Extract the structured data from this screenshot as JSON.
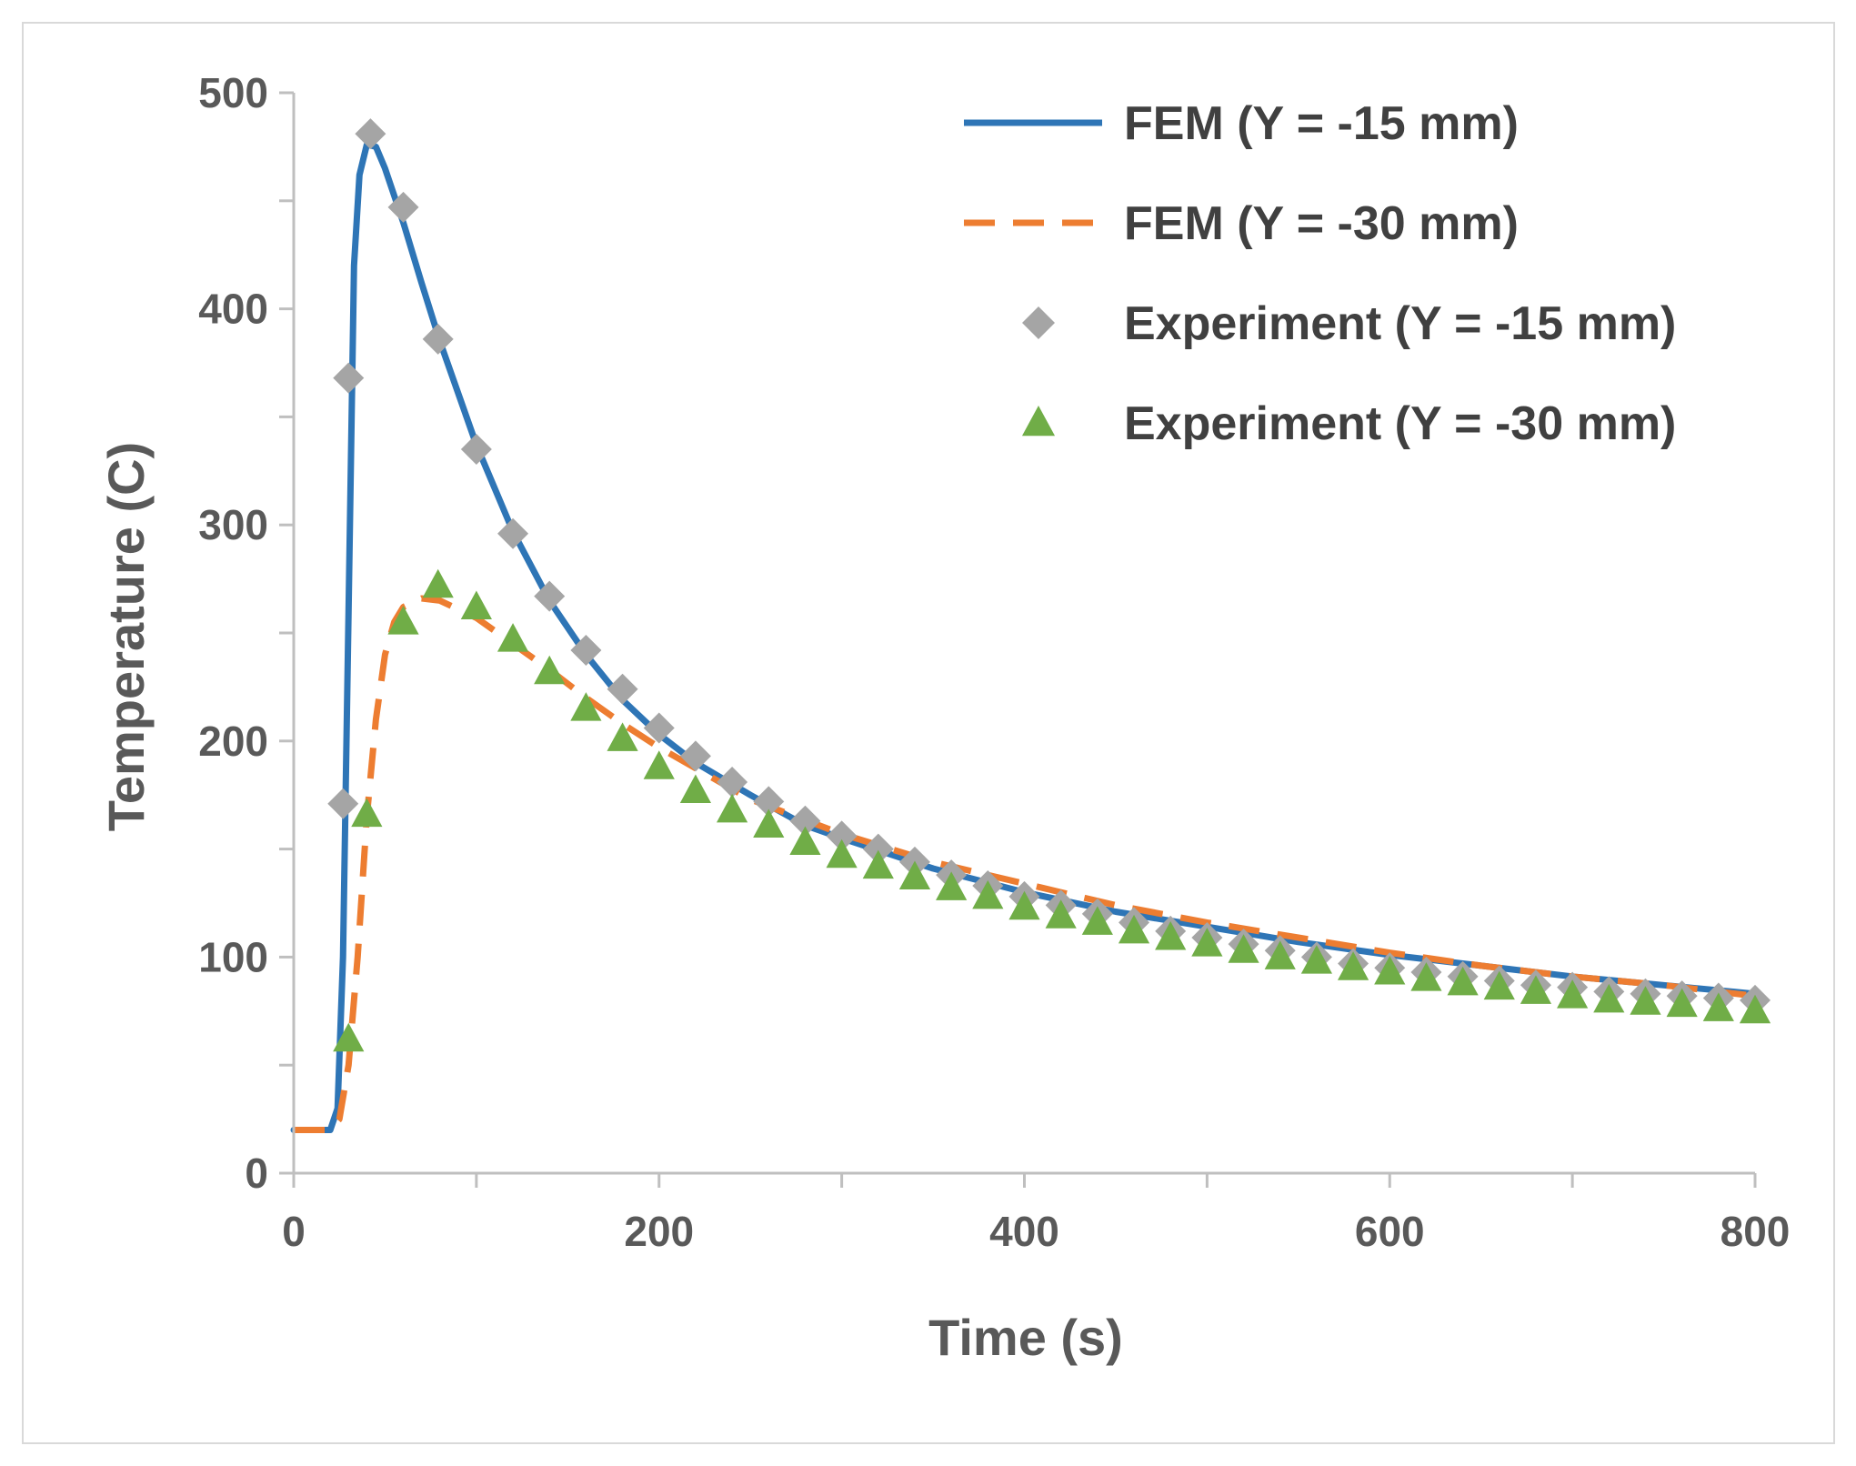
{
  "chart_data": {
    "type": "line",
    "title": "",
    "xlabel": "Time (s)",
    "ylabel": "Temperature (C)",
    "xlim": [
      0,
      800
    ],
    "ylim": [
      0,
      500
    ],
    "xticks": [
      0,
      200,
      400,
      600,
      800
    ],
    "yticks": [
      0,
      100,
      200,
      300,
      400,
      500
    ],
    "x_tick_labels": [
      "0",
      "200",
      "400",
      "600",
      "800"
    ],
    "y_tick_labels": [
      "0",
      "100",
      "200",
      "300",
      "400",
      "500"
    ],
    "grid": false,
    "legend_position": "top-right",
    "legend": [
      "FEM (Y = -15 mm)",
      "FEM (Y = -30 mm)",
      "Experiment (Y = -15 mm)",
      "Experiment (Y = -30 mm)"
    ],
    "series": [
      {
        "name": "FEM (Y = -15 mm)",
        "style": "solid-line",
        "color": "#2e75b6",
        "x": [
          0,
          20,
          24,
          27,
          30,
          33,
          36,
          40,
          45,
          50,
          60,
          70,
          80,
          100,
          120,
          140,
          160,
          180,
          200,
          220,
          250,
          280,
          300,
          350,
          400,
          450,
          500,
          550,
          600,
          650,
          700,
          750,
          800
        ],
        "y": [
          20,
          20,
          30,
          100,
          260,
          420,
          462,
          476,
          475,
          465,
          440,
          412,
          385,
          337,
          297,
          265,
          240,
          219,
          203,
          190,
          175,
          161,
          155,
          141,
          130,
          121,
          114,
          107,
          101,
          96,
          91,
          87,
          83
        ]
      },
      {
        "name": "FEM (Y = -30 mm)",
        "style": "dashed-line",
        "color": "#ed7d31",
        "x": [
          0,
          20,
          25,
          30,
          35,
          40,
          45,
          50,
          55,
          60,
          70,
          80,
          90,
          100,
          120,
          140,
          160,
          180,
          200,
          250,
          300,
          350,
          400,
          450,
          500,
          550,
          600,
          650,
          700,
          750,
          800
        ],
        "y": [
          20,
          20,
          25,
          50,
          100,
          165,
          210,
          240,
          255,
          262,
          266,
          265,
          261,
          257,
          245,
          233,
          220,
          208,
          197,
          173,
          157,
          144,
          134,
          124,
          116,
          109,
          102,
          96,
          91,
          87,
          82
        ]
      },
      {
        "name": "Experiment (Y = -15 mm)",
        "style": "diamond",
        "color": "#a5a5a5",
        "x": [
          27,
          30,
          42,
          60,
          79,
          100,
          120,
          140,
          160,
          180,
          200,
          220,
          240,
          260,
          280,
          300,
          320,
          340,
          360,
          380,
          400,
          420,
          440,
          460,
          480,
          500,
          520,
          540,
          560,
          580,
          600,
          620,
          640,
          660,
          680,
          700,
          720,
          740,
          760,
          780,
          800
        ],
        "y": [
          171,
          368,
          481,
          447,
          386,
          335,
          296,
          267,
          242,
          224,
          206,
          193,
          181,
          172,
          163,
          156,
          150,
          144,
          138,
          133,
          128,
          124,
          120,
          116,
          112,
          109,
          106,
          103,
          100,
          97,
          95,
          93,
          91,
          89,
          87,
          86,
          84,
          83,
          82,
          81,
          80
        ]
      },
      {
        "name": "Experiment (Y = -30 mm)",
        "style": "triangle",
        "color": "#70ad47",
        "x": [
          30,
          40,
          60,
          79,
          100,
          120,
          140,
          160,
          180,
          200,
          220,
          240,
          260,
          280,
          300,
          320,
          340,
          360,
          380,
          400,
          420,
          440,
          460,
          480,
          500,
          520,
          540,
          560,
          580,
          600,
          620,
          640,
          660,
          680,
          700,
          720,
          740,
          760,
          780,
          800
        ],
        "y": [
          62,
          166,
          255,
          272,
          262,
          247,
          232,
          215,
          201,
          188,
          177,
          168,
          161,
          153,
          147,
          142,
          137,
          132,
          128,
          123,
          119,
          116,
          112,
          109,
          106,
          103,
          100,
          98,
          95,
          93,
          90,
          88,
          86,
          84,
          82,
          80,
          79,
          78,
          76,
          75
        ]
      }
    ]
  }
}
